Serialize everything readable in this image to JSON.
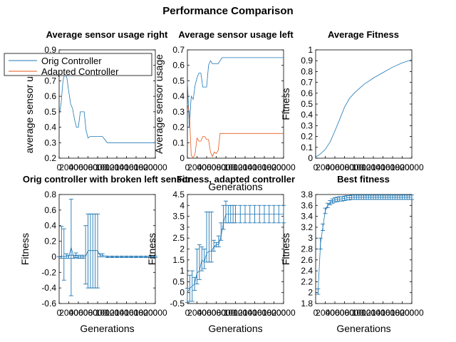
{
  "figure_title": "Performance Comparison",
  "colors": {
    "orig": "#1f77b4",
    "adapted": "#e5581f",
    "axis": "#000000"
  },
  "chart_data": [
    {
      "type": "line",
      "title": "Average sensor usage right",
      "xlabel": "",
      "ylabel": "average sensor usage",
      "xlim": [
        0,
        20000
      ],
      "ylim": [
        0.2,
        0.9
      ],
      "yticks": [
        "0.2",
        "0.3",
        "0.4",
        "0.5",
        "0.6",
        "0.7",
        "0.8",
        "0.9"
      ],
      "xticks": [
        "0",
        "2000",
        "4000",
        "6000",
        "8000",
        "10000",
        "12000",
        "14000",
        "16000",
        "18000",
        "20000"
      ],
      "legend": {
        "placement": "top-left",
        "entries": [
          "Orig Controller",
          "Adapted Controller"
        ]
      },
      "series": [
        {
          "name": "Orig Controller",
          "color_key": "orig",
          "x": [
            0,
            400,
            800,
            1200,
            1600,
            2000,
            2400,
            2800,
            3200,
            3600,
            4000,
            4400,
            4800,
            5200,
            5600,
            6000,
            6400,
            6800,
            7200,
            7600,
            8000,
            9000,
            10000,
            11000,
            12000,
            14000,
            16000,
            18000,
            20000
          ],
          "y": [
            0.48,
            0.55,
            0.7,
            0.75,
            0.72,
            0.63,
            0.55,
            0.52,
            0.45,
            0.4,
            0.4,
            0.5,
            0.5,
            0.5,
            0.38,
            0.33,
            0.34,
            0.34,
            0.34,
            0.34,
            0.34,
            0.34,
            0.3,
            0.3,
            0.3,
            0.3,
            0.3,
            0.3,
            0.3
          ]
        }
      ]
    },
    {
      "type": "line",
      "title": "Average sensor usage left",
      "xlabel": "Generations",
      "ylabel": "Average sensor usage",
      "xlim": [
        0,
        20000
      ],
      "ylim": [
        0,
        0.7
      ],
      "yticks": [
        "0",
        "0.1",
        "0.2",
        "0.3",
        "0.4",
        "0.5",
        "0.6",
        "0.7"
      ],
      "xticks": [
        "0",
        "2000",
        "4000",
        "6000",
        "8000",
        "10000",
        "12000",
        "14000",
        "16000",
        "18000",
        "20000"
      ],
      "series": [
        {
          "name": "Orig Controller",
          "color_key": "orig",
          "x": [
            0,
            400,
            800,
            1200,
            1600,
            2000,
            2400,
            2800,
            3200,
            3600,
            4000,
            4400,
            4800,
            5200,
            5600,
            6000,
            6400,
            6800,
            7200,
            7600,
            8000,
            9000,
            10000,
            12000,
            14000,
            16000,
            18000,
            20000
          ],
          "y": [
            0.5,
            0.2,
            0.4,
            0.38,
            0.47,
            0.52,
            0.55,
            0.55,
            0.46,
            0.46,
            0.46,
            0.6,
            0.63,
            0.61,
            0.61,
            0.61,
            0.61,
            0.63,
            0.65,
            0.65,
            0.65,
            0.65,
            0.65,
            0.65,
            0.65,
            0.65,
            0.65,
            0.65
          ]
        },
        {
          "name": "Adapted Controller",
          "color_key": "adapted",
          "x": [
            0,
            400,
            800,
            1200,
            1600,
            2000,
            2400,
            2800,
            3200,
            3600,
            4000,
            4400,
            4800,
            5200,
            5600,
            6000,
            6400,
            6800,
            7200,
            7600,
            8000,
            9000,
            10000,
            12000,
            14000,
            16000,
            18000,
            20000
          ],
          "y": [
            0.35,
            0.3,
            0.02,
            0.0,
            0.03,
            0.13,
            0.11,
            0.11,
            0.14,
            0.14,
            0.12,
            0.12,
            0.04,
            0.01,
            0.04,
            0.03,
            0.05,
            0.16,
            0.16,
            0.16,
            0.16,
            0.16,
            0.16,
            0.16,
            0.16,
            0.16,
            0.16,
            0.16
          ]
        }
      ]
    },
    {
      "type": "line",
      "title": "Average Fitness",
      "xlabel": "",
      "ylabel": "Fitness",
      "xlim": [
        0,
        20000
      ],
      "ylim": [
        0,
        1
      ],
      "yticks": [
        "0",
        "0.1",
        "0.2",
        "0.3",
        "0.4",
        "0.5",
        "0.6",
        "0.7",
        "0.8",
        "0.9",
        "1"
      ],
      "xticks": [
        "0",
        "2000",
        "4000",
        "6000",
        "8000",
        "10000",
        "12000",
        "14000",
        "16000",
        "18000",
        "20000"
      ],
      "series": [
        {
          "name": "Orig Controller",
          "color_key": "orig",
          "x": [
            0,
            1000,
            2000,
            3000,
            4000,
            5000,
            6000,
            7000,
            8000,
            9000,
            10000,
            11000,
            12000,
            14000,
            16000,
            18000,
            20000
          ],
          "y": [
            0.01,
            0.04,
            0.08,
            0.15,
            0.25,
            0.36,
            0.47,
            0.55,
            0.6,
            0.64,
            0.68,
            0.71,
            0.74,
            0.79,
            0.84,
            0.88,
            0.91
          ]
        }
      ]
    },
    {
      "type": "errorbar",
      "title": "Orig controller with broken left sensor",
      "xlabel": "Generations",
      "ylabel": "Fitness",
      "xlim": [
        0,
        20000
      ],
      "ylim": [
        -0.6,
        0.8
      ],
      "yticks": [
        "-0.6",
        "-0.4",
        "-0.2",
        "0",
        "0.2",
        "0.4",
        "0.6",
        "0.8"
      ],
      "xticks": [
        "0",
        "2000",
        "4000",
        "6000",
        "8000",
        "10000",
        "12000",
        "14000",
        "16000",
        "18000",
        "20000"
      ],
      "series": [
        {
          "name": "Orig Controller",
          "color_key": "orig",
          "x": [
            0,
            500,
            1000,
            1500,
            2000,
            2500,
            3000,
            3500,
            4000,
            4500,
            5000,
            5500,
            6000,
            6500,
            7000,
            7500,
            8000,
            8500,
            9000,
            10000,
            11000,
            12000,
            13000,
            14000,
            15000,
            16000,
            17000,
            18000,
            19000,
            20000
          ],
          "y": [
            0.0,
            0.01,
            0.0,
            0.01,
            0.0,
            0.12,
            0.0,
            0.02,
            0.0,
            0.0,
            0.0,
            0.0,
            0.08,
            0.08,
            0.08,
            0.08,
            0.08,
            0.02,
            0.02,
            0.0,
            0.0,
            0.0,
            0.0,
            0.0,
            0.0,
            0.0,
            0.0,
            0.0,
            0.0,
            0.0
          ],
          "err_low": [
            0.0,
            0.03,
            0.3,
            0.03,
            0.02,
            0.62,
            0.02,
            0.03,
            0.02,
            0.02,
            0.02,
            0.35,
            0.48,
            0.48,
            0.48,
            0.48,
            0.48,
            0.02,
            0.02,
            0.01,
            0.01,
            0.01,
            0.01,
            0.01,
            0.01,
            0.01,
            0.01,
            0.01,
            0.01,
            0.01
          ],
          "err_high": [
            0.0,
            0.38,
            0.36,
            0.03,
            0.02,
            0.62,
            0.02,
            0.03,
            0.02,
            0.02,
            0.02,
            0.4,
            0.47,
            0.47,
            0.47,
            0.47,
            0.47,
            0.02,
            0.02,
            0.01,
            0.01,
            0.01,
            0.01,
            0.01,
            0.01,
            0.01,
            0.01,
            0.01,
            0.01,
            0.01
          ]
        }
      ]
    },
    {
      "type": "errorbar",
      "title": "Fitness, adapted controller",
      "xlabel": "Generations",
      "ylabel": "Fitness",
      "xlim": [
        0,
        20000
      ],
      "ylim": [
        -0.5,
        4.5
      ],
      "yticks": [
        "-0.5",
        "0",
        "0.5",
        "1",
        "1.5",
        "2",
        "2.5",
        "3",
        "3.5",
        "4",
        "4.5"
      ],
      "xticks": [
        "0",
        "2000",
        "4000",
        "6000",
        "8000",
        "10000",
        "12000",
        "14000",
        "16000",
        "18000",
        "20000"
      ],
      "series": [
        {
          "name": "Adapted Controller",
          "color_key": "orig",
          "x": [
            0,
            500,
            1000,
            1500,
            2000,
            2500,
            3000,
            3500,
            4000,
            4500,
            5000,
            5500,
            6000,
            6500,
            7000,
            7500,
            8000,
            8500,
            9000,
            9500,
            10000,
            11000,
            12000,
            13000,
            14000,
            15000,
            16000,
            17000,
            18000,
            19000,
            20000
          ],
          "y": [
            0.0,
            0.2,
            0.3,
            0.4,
            0.9,
            1.0,
            1.5,
            1.4,
            1.8,
            1.9,
            1.9,
            2.1,
            2.2,
            2.2,
            2.6,
            3.2,
            3.6,
            3.6,
            3.6,
            3.6,
            3.6,
            3.6,
            3.6,
            3.6,
            3.6,
            3.6,
            3.6,
            3.6,
            3.6,
            3.6,
            3.6
          ],
          "err_low": [
            0.45,
            0.6,
            0.7,
            0.3,
            0.5,
            0.4,
            0.5,
            0.3,
            0.4,
            0.5,
            0.5,
            0.2,
            0.1,
            0.1,
            0.2,
            0.3,
            0.4,
            0.4,
            0.4,
            0.4,
            0.4,
            0.4,
            0.4,
            0.4,
            0.4,
            0.4,
            0.4,
            0.4,
            0.4,
            0.4,
            0.4
          ],
          "err_high": [
            0.2,
            0.6,
            0.7,
            0.3,
            1.1,
            1.2,
            0.6,
            0.6,
            1.9,
            1.8,
            1.8,
            0.3,
            0.1,
            0.4,
            0.6,
            0.8,
            0.6,
            0.4,
            0.4,
            0.4,
            0.4,
            0.4,
            0.4,
            0.4,
            0.4,
            0.4,
            0.4,
            0.4,
            0.4,
            0.4,
            0.4
          ]
        }
      ]
    },
    {
      "type": "errorbar",
      "title": "Best fitness",
      "xlabel": "Generations",
      "ylabel": "Fitness",
      "xlim": [
        0,
        20000
      ],
      "ylim": [
        1.8,
        3.8
      ],
      "yticks": [
        "1.8",
        "2",
        "2.2",
        "2.4",
        "2.6",
        "2.8",
        "3",
        "3.2",
        "3.4",
        "3.6",
        "3.8"
      ],
      "xticks": [
        "0",
        "2000",
        "4000",
        "6000",
        "8000",
        "10000",
        "12000",
        "14000",
        "16000",
        "18000",
        "20000"
      ],
      "series": [
        {
          "name": "Best fitness",
          "color_key": "orig",
          "x": [
            500,
            1000,
            1500,
            2000,
            2500,
            3000,
            3500,
            4000,
            4500,
            5000,
            5500,
            6000,
            6500,
            7000,
            7500,
            8000,
            8500,
            9000,
            9500,
            10000,
            10500,
            11000,
            11500,
            12000,
            12500,
            13000,
            13500,
            14000,
            14500,
            15000,
            15500,
            16000,
            16500,
            17000,
            17500,
            18000,
            18500,
            19000,
            19500,
            20000
          ],
          "y": [
            2.02,
            2.9,
            3.2,
            3.5,
            3.6,
            3.65,
            3.68,
            3.7,
            3.71,
            3.72,
            3.72,
            3.73,
            3.74,
            3.74,
            3.75,
            3.75,
            3.75,
            3.75,
            3.75,
            3.75,
            3.75,
            3.75,
            3.75,
            3.75,
            3.75,
            3.75,
            3.75,
            3.75,
            3.75,
            3.75,
            3.75,
            3.75,
            3.75,
            3.75,
            3.75,
            3.75,
            3.75,
            3.75,
            3.75,
            3.75
          ],
          "err_low": [
            0.05,
            0.1,
            0.06,
            0.05,
            0.04,
            0.04,
            0.04,
            0.04,
            0.04,
            0.04,
            0.04,
            0.04,
            0.04,
            0.04,
            0.04,
            0.04,
            0.04,
            0.04,
            0.04,
            0.04,
            0.04,
            0.04,
            0.04,
            0.04,
            0.04,
            0.04,
            0.04,
            0.04,
            0.04,
            0.04,
            0.04,
            0.04,
            0.04,
            0.04,
            0.04,
            0.04,
            0.04,
            0.04,
            0.04,
            0.04
          ],
          "err_high": [
            0.05,
            0.1,
            0.06,
            0.05,
            0.04,
            0.04,
            0.04,
            0.04,
            0.04,
            0.04,
            0.04,
            0.04,
            0.04,
            0.04,
            0.04,
            0.04,
            0.04,
            0.04,
            0.04,
            0.04,
            0.04,
            0.04,
            0.04,
            0.04,
            0.04,
            0.04,
            0.04,
            0.04,
            0.04,
            0.04,
            0.04,
            0.04,
            0.04,
            0.04,
            0.04,
            0.04,
            0.04,
            0.04,
            0.04,
            0.04
          ]
        }
      ]
    }
  ]
}
